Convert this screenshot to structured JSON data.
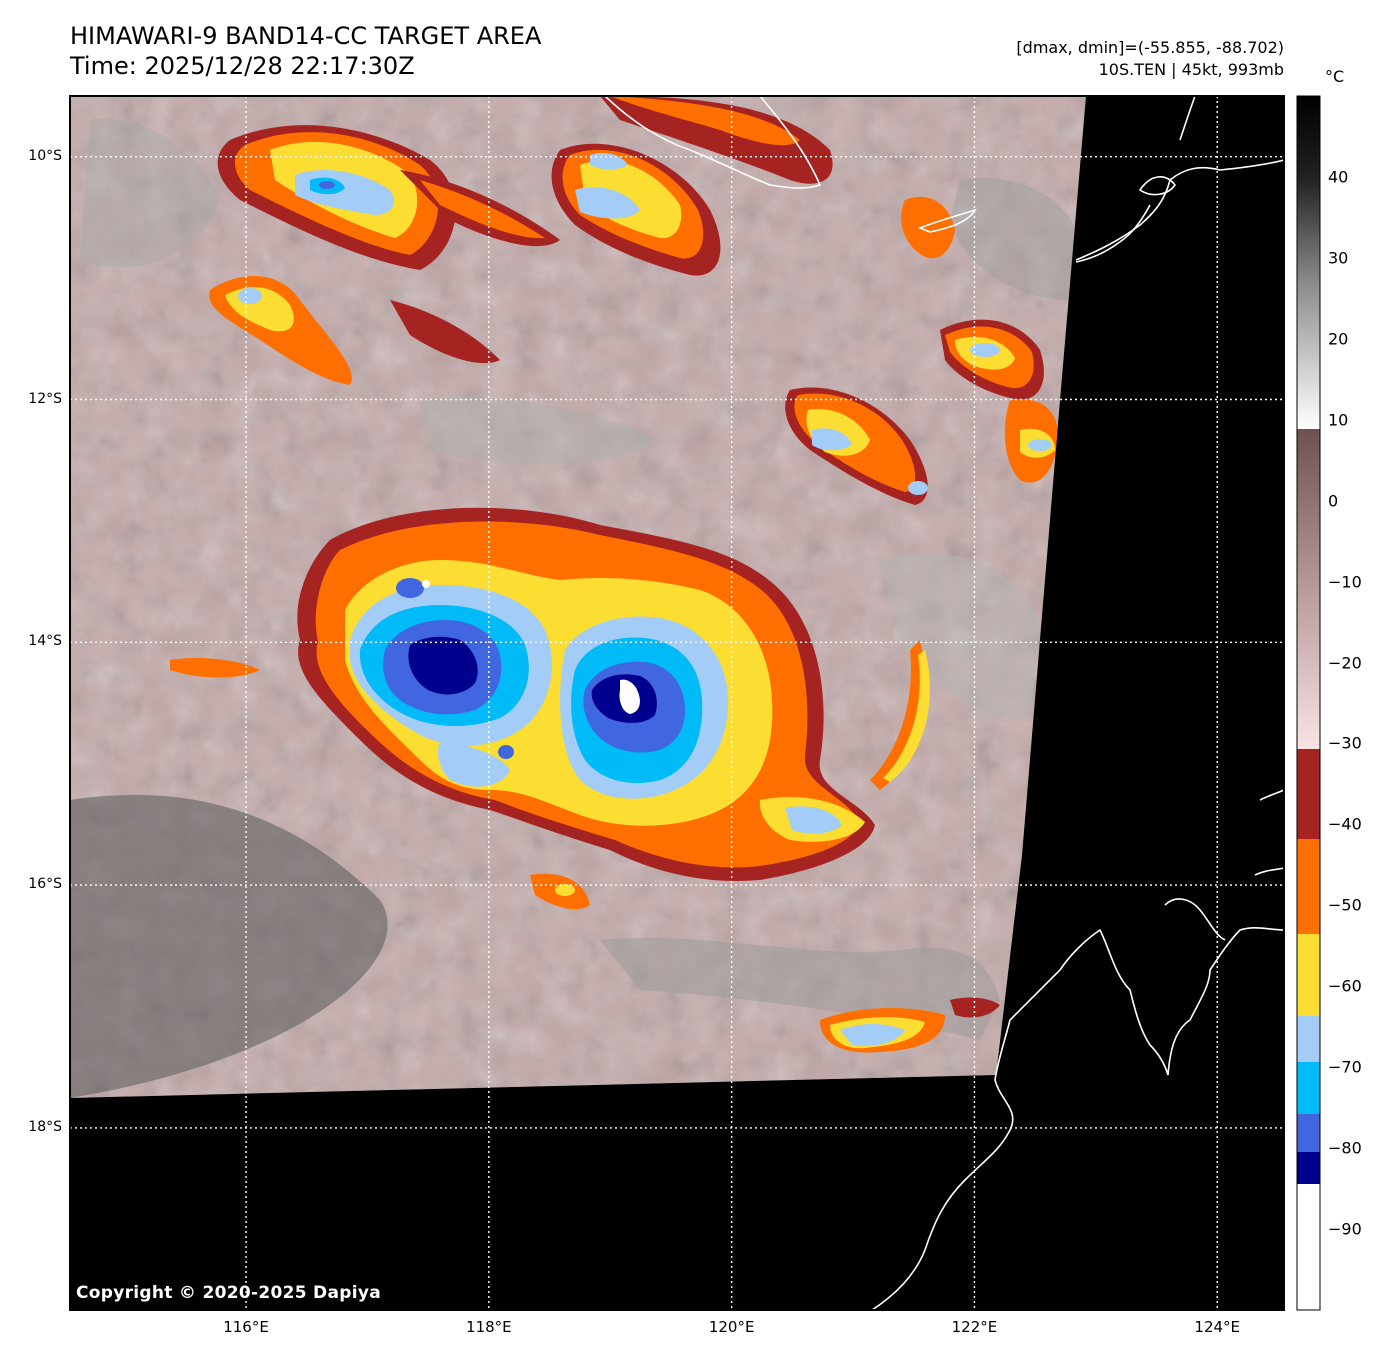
{
  "header": {
    "title_line1": "HIMAWARI-9 BAND14-CC TARGET AREA",
    "title_line2": "Time: 2025/12/28 22:17:30Z",
    "stats_line1": "[dmax, dmin]=(-55.855, -88.702)",
    "stats_line2": "10S.TEN | 45kt, 993mb"
  },
  "map": {
    "lat_labels": [
      "10°S",
      "12°S",
      "14°S",
      "16°S",
      "18°S"
    ],
    "lon_labels": [
      "116°E",
      "118°E",
      "120°E",
      "122°E",
      "124°E"
    ],
    "lat_values": [
      -10,
      -12,
      -14,
      -16,
      -18
    ],
    "lon_values": [
      116,
      118,
      120,
      122,
      124
    ],
    "extent": {
      "lon_min": 114.55,
      "lon_max": 124.55,
      "lat_min": -19.5,
      "lat_max": -9.5
    },
    "copyright": "Copyright © 2020-2025 Dapiya"
  },
  "colorbar": {
    "unit": "°C",
    "labels": [
      "40",
      "30",
      "20",
      "10",
      "0",
      "−10",
      "−20",
      "−30",
      "−40",
      "−50",
      "−60",
      "−70",
      "−80",
      "−90"
    ],
    "label_values": [
      40,
      30,
      20,
      10,
      0,
      -10,
      -20,
      -30,
      -40,
      -50,
      -60,
      -70,
      -80,
      -90
    ],
    "range": [
      -100,
      50
    ],
    "colors": {
      "black": "#000000",
      "white": "#ffffff",
      "dark_brown": "#6e5151",
      "pink": "#f3d9d9",
      "dark_red": "#a52421",
      "orange": "#ff6f00",
      "yellow": "#fcdd31",
      "light_blue": "#a3cdf7",
      "cyan": "#00bbf7",
      "royal_blue": "#4066e0",
      "navy": "#00008e"
    }
  }
}
